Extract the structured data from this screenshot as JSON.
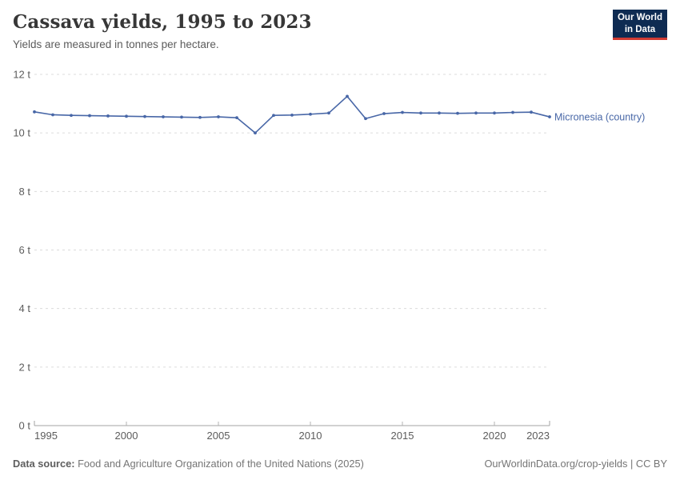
{
  "header": {
    "title": "Cassava yields, 1995 to 2023",
    "subtitle": "Yields are measured in tonnes per hectare.",
    "logo": {
      "line1": "Our World",
      "line2": "in Data"
    }
  },
  "chart_data": {
    "type": "line",
    "title": "Cassava yields, 1995 to 2023",
    "ylabel": "",
    "xlabel": "",
    "unit_suffix": " t",
    "ylim": [
      0,
      12
    ],
    "ytick_step": 2,
    "grid": "horizontal-dashed",
    "legend_position": "right-end-label",
    "x": [
      1995,
      1996,
      1997,
      1998,
      1999,
      2000,
      2001,
      2002,
      2003,
      2004,
      2005,
      2006,
      2007,
      2008,
      2009,
      2010,
      2011,
      2012,
      2013,
      2014,
      2015,
      2016,
      2017,
      2018,
      2019,
      2020,
      2021,
      2022,
      2023
    ],
    "xticks": [
      1995,
      2000,
      2005,
      2010,
      2015,
      2020,
      2023
    ],
    "series": [
      {
        "name": "Micronesia (country)",
        "color": "#4867a7",
        "values": [
          10.72,
          10.62,
          10.6,
          10.59,
          10.58,
          10.57,
          10.56,
          10.55,
          10.54,
          10.53,
          10.55,
          10.52,
          10.0,
          10.6,
          10.61,
          10.64,
          10.68,
          11.25,
          10.49,
          10.66,
          10.7,
          10.68,
          10.68,
          10.67,
          10.68,
          10.68,
          10.7,
          10.71,
          10.55
        ]
      }
    ]
  },
  "footer": {
    "source_label": "Data source:",
    "source_text": " Food and Agriculture Organization of the United Nations (2025)",
    "credit": "OurWorldinData.org/crop-yields | CC BY"
  },
  "colors": {
    "line": "#4867a7",
    "grid": "#dcdcdc",
    "axis_line": "#a3a3a3",
    "tick": "#b3b3b3",
    "logo_bg": "#0e2b52",
    "logo_accent": "#d13b33"
  }
}
